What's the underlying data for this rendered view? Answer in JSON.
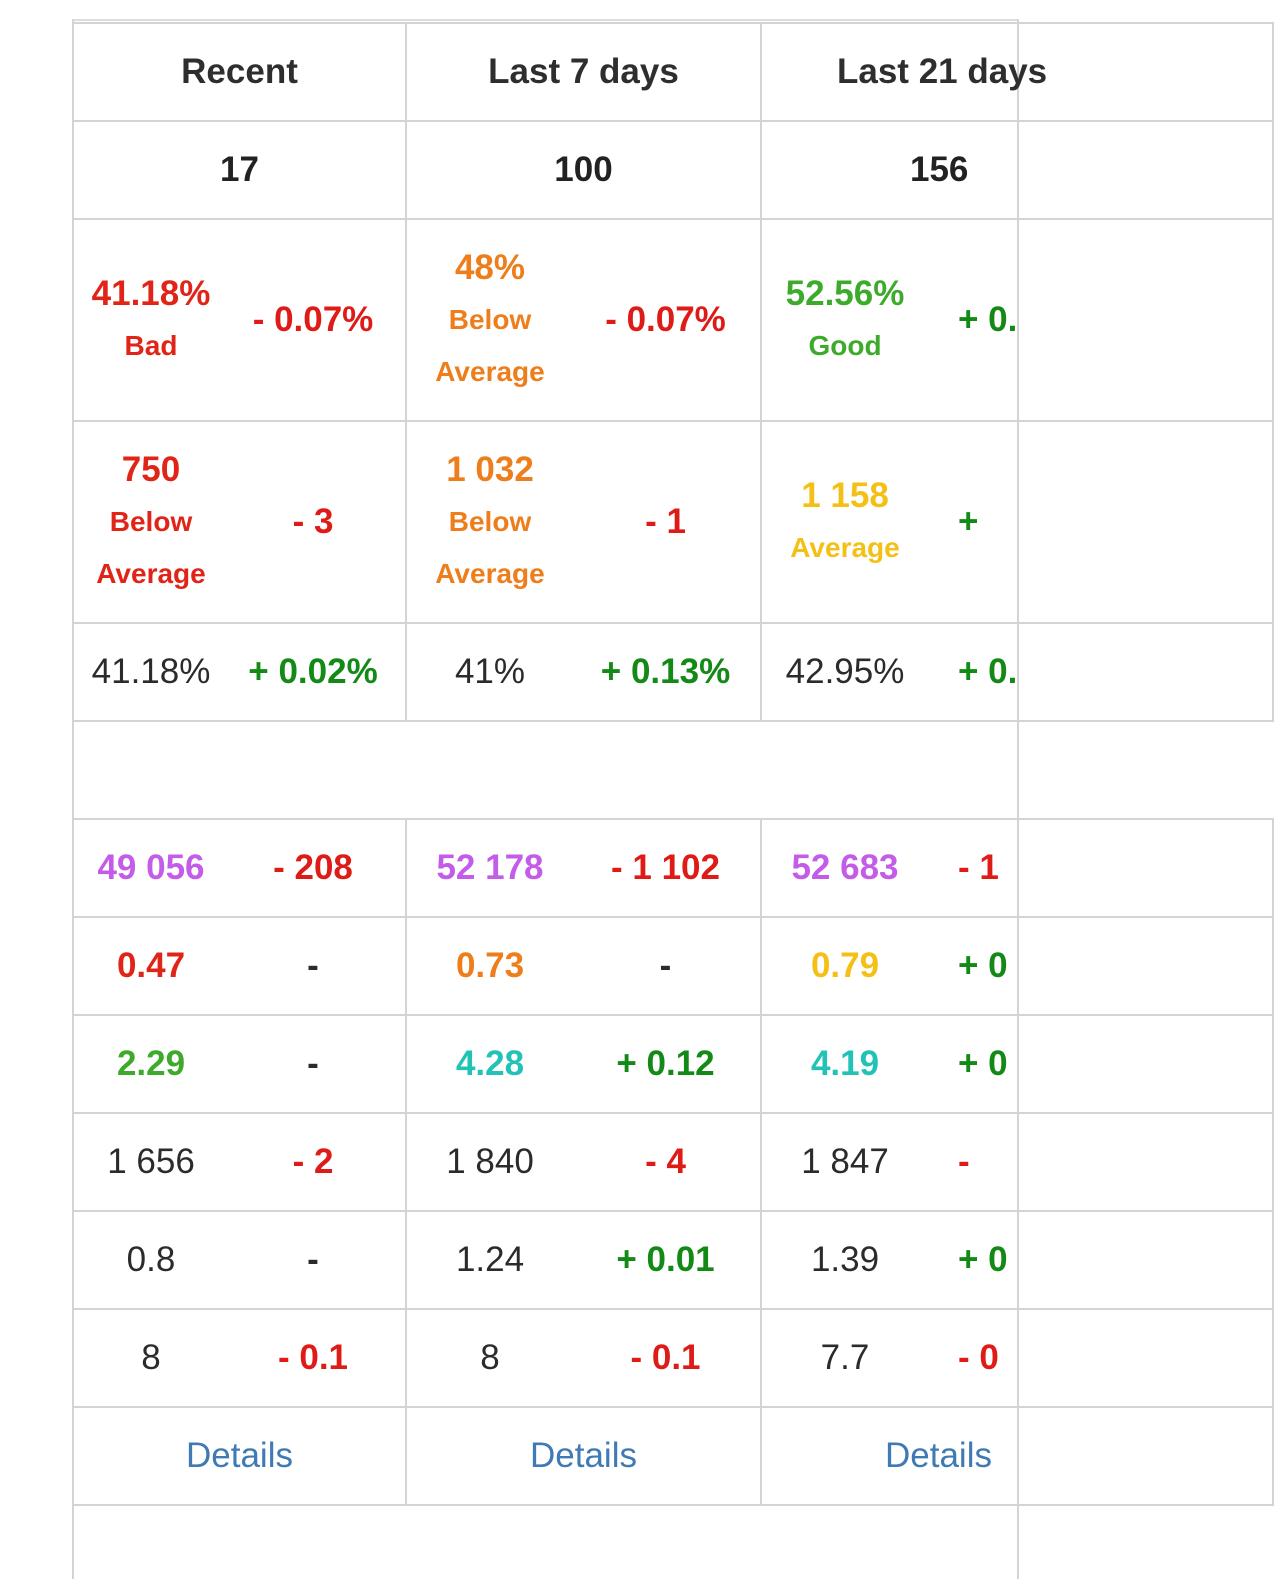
{
  "columns": [
    {
      "header": "Recent",
      "count": "17",
      "rate": {
        "value": "41.18%",
        "label": "Bad",
        "delta": "- 0.07%"
      },
      "score": {
        "value": "750",
        "label1": "Below",
        "label2": "Average",
        "delta": "- 3"
      },
      "pct": {
        "value": "41.18%",
        "delta": "+ 0.02%"
      },
      "rows": [
        {
          "value": "49 056",
          "delta": "- 208"
        },
        {
          "value": "0.47",
          "delta": "-"
        },
        {
          "value": "2.29",
          "delta": "-"
        },
        {
          "value": "1 656",
          "delta": "- 2"
        },
        {
          "value": "0.8",
          "delta": "-"
        },
        {
          "value": "8",
          "delta": "- 0.1"
        }
      ],
      "details": "Details"
    },
    {
      "header": "Last 7 days",
      "count": "100",
      "rate": {
        "value": "48%",
        "label1": "Below",
        "label2": "Average",
        "delta": "- 0.07%"
      },
      "score": {
        "value": "1 032",
        "label1": "Below",
        "label2": "Average",
        "delta": "- 1"
      },
      "pct": {
        "value": "41%",
        "delta": "+ 0.13%"
      },
      "rows": [
        {
          "value": "52 178",
          "delta": "- 1 102"
        },
        {
          "value": "0.73",
          "delta": "-"
        },
        {
          "value": "4.28",
          "delta": "+ 0.12"
        },
        {
          "value": "1 840",
          "delta": "- 4"
        },
        {
          "value": "1.24",
          "delta": "+ 0.01"
        },
        {
          "value": "8",
          "delta": "- 0.1"
        }
      ],
      "details": "Details"
    },
    {
      "header": "Last 21 days",
      "count": "156",
      "rate": {
        "value": "52.56%",
        "label": "Good",
        "delta": "+ 0."
      },
      "score": {
        "value": "1 158",
        "label": "Average",
        "delta": "+"
      },
      "pct": {
        "value": "42.95%",
        "delta": "+ 0."
      },
      "rows": [
        {
          "value": "52 683",
          "delta": "- 1"
        },
        {
          "value": "0.79",
          "delta": "+ 0"
        },
        {
          "value": "4.19",
          "delta": "+ 0"
        },
        {
          "value": "1 847",
          "delta": "-"
        },
        {
          "value": "1.39",
          "delta": "+ 0"
        },
        {
          "value": "7.7",
          "delta": "- 0"
        }
      ],
      "details": "Details"
    }
  ],
  "colors": {
    "bad": "#e02417",
    "below_average": "#ee7d1b",
    "average": "#f4c016",
    "good": "#3eaa2b",
    "purple": "#c35ce8",
    "teal": "#22c3b6",
    "negative": "#df1b17",
    "positive": "#148a16",
    "link": "#3f7ab4"
  }
}
